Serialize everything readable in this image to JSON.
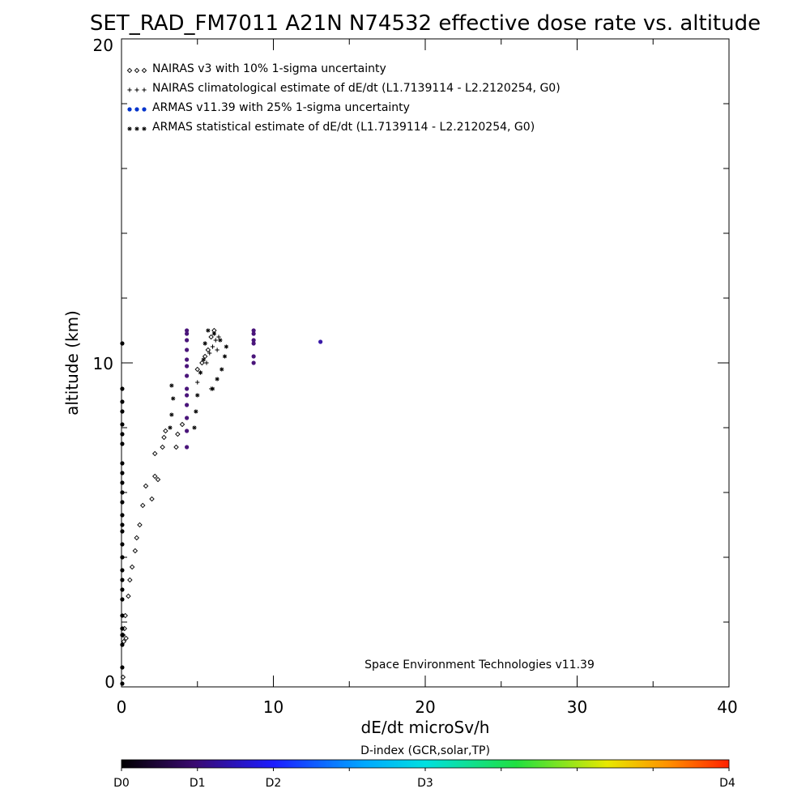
{
  "chart_data": {
    "type": "scatter",
    "title": "SET_RAD_FM7011  A21N N74532 effective dose rate vs. altitude",
    "xlabel": "dE/dt microSv/h",
    "ylabel": "altitude (km)",
    "xlim": [
      0,
      40
    ],
    "ylim": [
      0,
      20
    ],
    "x_ticks": [
      "0",
      "10",
      "20",
      "30",
      "40"
    ],
    "y_ticks": [
      "0",
      "10",
      "20"
    ],
    "annotation": "Space Environment Technologies v11.39",
    "legend_placement": "top-left",
    "legend": [
      {
        "marker": "diamond",
        "color": "#000000",
        "label": "NAIRAS v3 with 10% 1-sigma uncertainty"
      },
      {
        "marker": "plus",
        "color": "#000000",
        "label": "NAIRAS climatological estimate of dE/dt (L1.7139114 - L2.2120254, G0)"
      },
      {
        "marker": "dot",
        "color": "#0033cc",
        "label": "ARMAS v11.39 with 25% 1-sigma uncertainty"
      },
      {
        "marker": "asterisk",
        "color": "#000000",
        "label": "ARMAS statistical estimate of dE/dt (L1.7139114 - L2.2120254, G0)"
      }
    ],
    "series": [
      {
        "marker": "diamond",
        "color": "#000000",
        "x": [
          0.1,
          0.15,
          0.1,
          0.2,
          0.3,
          0.25,
          0.45,
          0.55,
          0.7,
          0.9,
          1.0,
          1.2,
          1.4,
          1.6,
          2.0,
          2.2,
          2.4,
          2.2,
          2.8,
          2.9,
          2.7,
          3.6,
          3.7,
          4.0,
          5.0,
          5.3,
          5.5,
          5.7,
          5.9,
          6.1
        ],
        "y": [
          0.3,
          1.4,
          1.6,
          1.8,
          1.5,
          2.2,
          2.8,
          3.3,
          3.7,
          4.2,
          4.6,
          5.0,
          5.6,
          6.2,
          5.8,
          6.5,
          6.4,
          7.2,
          7.7,
          7.9,
          7.4,
          7.4,
          7.8,
          8.1,
          9.8,
          10.0,
          10.2,
          10.4,
          10.8,
          11.0
        ]
      },
      {
        "marker": "plus",
        "color": "#000000",
        "x": [
          5.0,
          5.2,
          5.6,
          5.8,
          6.0,
          6.2,
          6.4,
          5.5,
          5.9,
          6.3
        ],
        "y": [
          9.4,
          9.7,
          10.0,
          10.3,
          10.5,
          10.7,
          10.8,
          10.6,
          9.2,
          10.4
        ]
      },
      {
        "marker": "dot",
        "color": "#0033cc",
        "x": [
          4.3,
          4.3,
          4.3,
          4.3,
          4.3,
          4.3,
          4.3,
          4.3,
          4.3,
          4.3,
          4.3,
          4.3,
          4.3,
          8.7,
          8.7,
          8.7,
          8.7,
          8.7,
          8.7,
          13.1
        ],
        "y": [
          7.4,
          7.9,
          8.3,
          8.7,
          9.0,
          9.2,
          9.6,
          9.9,
          10.1,
          10.4,
          10.7,
          10.9,
          11.0,
          10.0,
          10.2,
          10.6,
          10.7,
          10.9,
          11.0,
          10.65
        ]
      },
      {
        "marker": "asterisk",
        "color": "#000000",
        "x": [
          3.2,
          3.3,
          3.4,
          3.3,
          4.8,
          4.9,
          5.0,
          5.2,
          5.4,
          6.0,
          6.3,
          6.6,
          6.8,
          6.9,
          6.5,
          6.1,
          5.7,
          5.5
        ],
        "y": [
          8.0,
          8.4,
          8.9,
          9.3,
          8.0,
          8.5,
          9.0,
          9.7,
          10.1,
          9.2,
          9.5,
          9.8,
          10.2,
          10.5,
          10.7,
          10.9,
          11.0,
          10.6
        ]
      },
      {
        "marker": "dot",
        "color": "#000000",
        "x": [
          0.05,
          0.05,
          0.05,
          0.05,
          0.05,
          0.05,
          0.05,
          0.05,
          0.05,
          0.05,
          0.05,
          0.05,
          0.05,
          0.05,
          0.05,
          0.05,
          0.05,
          0.05,
          0.05,
          0.05,
          0.05,
          0.05,
          0.05,
          0.05,
          0.05,
          0.05,
          0.05
        ],
        "y": [
          0.1,
          0.6,
          1.3,
          1.6,
          1.8,
          2.2,
          2.7,
          3.0,
          3.3,
          3.6,
          4.0,
          4.4,
          4.8,
          5.0,
          5.3,
          5.7,
          6.0,
          6.3,
          6.6,
          6.9,
          7.5,
          7.8,
          8.1,
          8.5,
          8.8,
          9.2,
          10.6
        ]
      }
    ],
    "colorbar": {
      "title": "D-index (GCR,solar,TP)",
      "labels": [
        "D0",
        "D1",
        "D2",
        "D3",
        "D4"
      ],
      "label_fractions": [
        0.0,
        0.125,
        0.25,
        0.5,
        1.0
      ],
      "stops": [
        {
          "t": 0.0,
          "color": "#000000"
        },
        {
          "t": 0.12,
          "color": "#3a0a70"
        },
        {
          "t": 0.25,
          "color": "#1c1cff"
        },
        {
          "t": 0.4,
          "color": "#00a8ff"
        },
        {
          "t": 0.5,
          "color": "#00e0e0"
        },
        {
          "t": 0.65,
          "color": "#20e040"
        },
        {
          "t": 0.8,
          "color": "#e8e800"
        },
        {
          "t": 0.9,
          "color": "#ff9000"
        },
        {
          "t": 1.0,
          "color": "#ff2000"
        }
      ]
    }
  }
}
